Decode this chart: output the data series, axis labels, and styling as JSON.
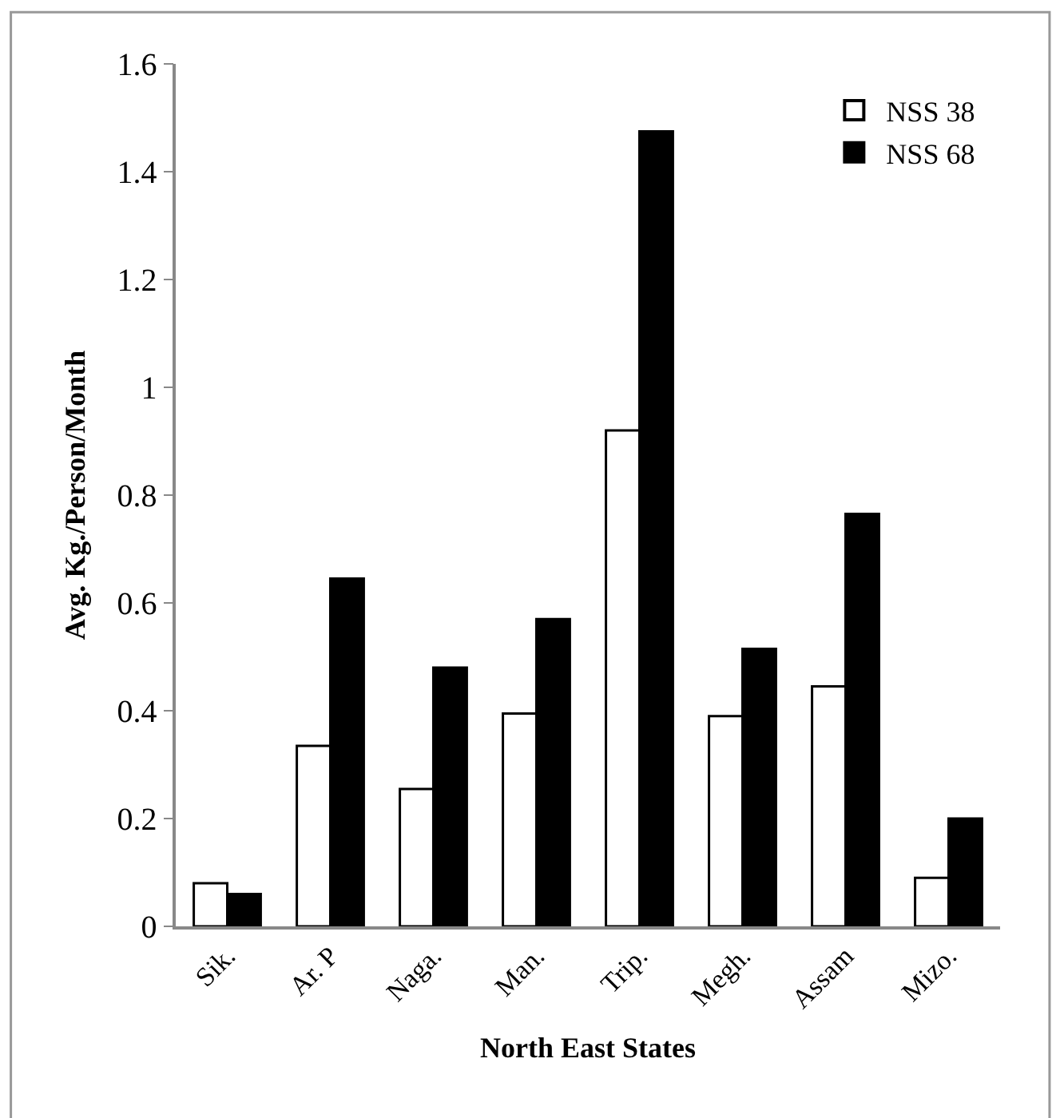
{
  "chart_data": {
    "type": "bar",
    "xlabel": "North East States",
    "ylabel": "Avg. Kg./Person/Month",
    "categories": [
      "Sik.",
      "Ar. P",
      "Naga.",
      "Man.",
      "Trip.",
      "Megh.",
      "Assam",
      "Mizo."
    ],
    "series": [
      {
        "name": "NSS 38",
        "color": "#ffffff",
        "values": [
          0.08,
          0.335,
          0.255,
          0.395,
          0.92,
          0.39,
          0.445,
          0.09
        ]
      },
      {
        "name": "NSS 68",
        "color": "#000000",
        "values": [
          0.06,
          0.645,
          0.48,
          0.57,
          1.475,
          0.515,
          0.765,
          0.2
        ]
      }
    ],
    "ylim": [
      0,
      1.6
    ],
    "yticks": [
      0,
      0.2,
      0.4,
      0.6,
      0.8,
      1,
      1.2,
      1.4,
      1.6
    ],
    "grid": false,
    "legend": "top right"
  }
}
